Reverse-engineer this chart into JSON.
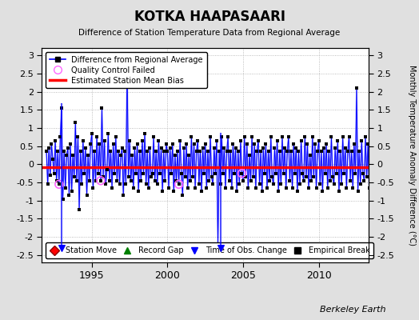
{
  "title": "KOTKA HAAPASAARI",
  "subtitle": "Difference of Station Temperature Data from Regional Average",
  "ylabel": "Monthly Temperature Anomaly Difference (°C)",
  "credit": "Berkeley Earth",
  "ylim": [
    -2.7,
    3.2
  ],
  "yticks": [
    -2.5,
    -2,
    -1.5,
    -1,
    -0.5,
    0,
    0.5,
    1,
    1.5,
    2,
    2.5,
    3
  ],
  "mean_bias": -0.07,
  "line_color": "#0000ff",
  "bias_color": "#ff0000",
  "marker_color": "#000000",
  "qc_color": "#ff66ff",
  "bg_color": "#e0e0e0",
  "plot_bg": "#ffffff",
  "start_year": 1992,
  "end_year": 2013,
  "xticks": [
    1995,
    2000,
    2005,
    2010
  ],
  "values": [
    0.35,
    -0.55,
    0.45,
    -0.3,
    0.55,
    0.15,
    -0.25,
    0.65,
    -0.45,
    0.35,
    -0.55,
    0.75,
    1.55,
    -0.95,
    0.35,
    -0.65,
    0.25,
    0.45,
    -0.85,
    0.55,
    -0.75,
    0.25,
    -0.35,
    1.15,
    -0.45,
    0.75,
    -1.25,
    0.35,
    -0.55,
    0.65,
    -0.25,
    0.45,
    -0.85,
    0.25,
    -0.45,
    0.55,
    0.85,
    -0.65,
    0.35,
    -0.45,
    0.75,
    -0.25,
    0.55,
    -0.45,
    1.55,
    -0.35,
    0.65,
    -0.55,
    -0.15,
    0.85,
    -0.45,
    0.35,
    -0.65,
    0.55,
    -0.25,
    0.75,
    -0.45,
    0.35,
    -0.55,
    0.25,
    0.45,
    -0.85,
    0.35,
    -0.55,
    2.7,
    -0.35,
    0.65,
    -0.45,
    0.25,
    -0.65,
    0.45,
    -0.25,
    0.55,
    -0.75,
    0.35,
    -0.45,
    0.65,
    -0.25,
    0.85,
    -0.55,
    0.35,
    -0.65,
    0.45,
    -0.35,
    -0.25,
    0.75,
    -0.45,
    0.35,
    -0.55,
    0.65,
    -0.25,
    0.45,
    -0.75,
    0.35,
    -0.45,
    0.55,
    0.35,
    -0.65,
    0.45,
    -0.25,
    0.55,
    -0.75,
    0.25,
    -0.45,
    0.35,
    -0.55,
    0.65,
    -0.25,
    -0.85,
    0.45,
    -0.35,
    0.55,
    -0.65,
    0.25,
    -0.45,
    0.75,
    -0.35,
    0.55,
    -0.65,
    0.35,
    0.65,
    -0.55,
    0.35,
    -0.75,
    0.45,
    -0.25,
    0.55,
    -0.65,
    0.35,
    -0.45,
    0.75,
    -0.35,
    -0.55,
    0.45,
    -0.25,
    0.65,
    -2.2,
    0.35,
    -0.55,
    0.75,
    -0.25,
    0.45,
    -0.65,
    0.35,
    0.75,
    -0.45,
    0.35,
    -0.65,
    0.55,
    -0.25,
    0.45,
    -0.75,
    0.35,
    -0.55,
    0.65,
    -0.25,
    -0.45,
    0.75,
    -0.35,
    0.55,
    -0.65,
    0.25,
    -0.45,
    0.75,
    -0.35,
    0.55,
    -0.65,
    0.35,
    0.65,
    -0.55,
    0.35,
    -0.75,
    0.45,
    -0.25,
    0.55,
    -0.65,
    0.35,
    -0.45,
    0.75,
    -0.35,
    -0.55,
    0.45,
    -0.25,
    0.65,
    -0.75,
    0.35,
    -0.55,
    0.75,
    -0.25,
    0.45,
    -0.65,
    0.35,
    0.75,
    -0.45,
    0.35,
    -0.65,
    0.55,
    -0.25,
    0.45,
    -0.75,
    0.35,
    -0.55,
    0.65,
    -0.25,
    -0.45,
    0.75,
    -0.35,
    0.55,
    -0.65,
    0.25,
    -0.45,
    0.75,
    -0.35,
    0.55,
    -0.65,
    0.35,
    0.65,
    -0.55,
    0.35,
    -0.75,
    0.45,
    -0.25,
    0.55,
    -0.65,
    0.35,
    -0.45,
    0.75,
    -0.35,
    -0.55,
    0.45,
    -0.25,
    0.65,
    -0.75,
    0.35,
    -0.55,
    0.75,
    -0.25,
    0.45,
    -0.65,
    0.35,
    0.75,
    -0.45,
    0.35,
    -0.65,
    0.55,
    -0.25,
    2.1,
    -0.75,
    0.35,
    -0.55,
    0.65,
    -0.25,
    -0.45,
    0.75,
    -0.35,
    0.55,
    -0.65,
    0.25,
    -0.45,
    0.75,
    -0.35,
    0.55,
    -0.65,
    0.35
  ],
  "qc_failed_indices": [
    10,
    43,
    105,
    155
  ],
  "tobs_change_years": [
    1993.0,
    2003.5
  ],
  "figsize": [
    5.24,
    4.0
  ],
  "dpi": 100
}
